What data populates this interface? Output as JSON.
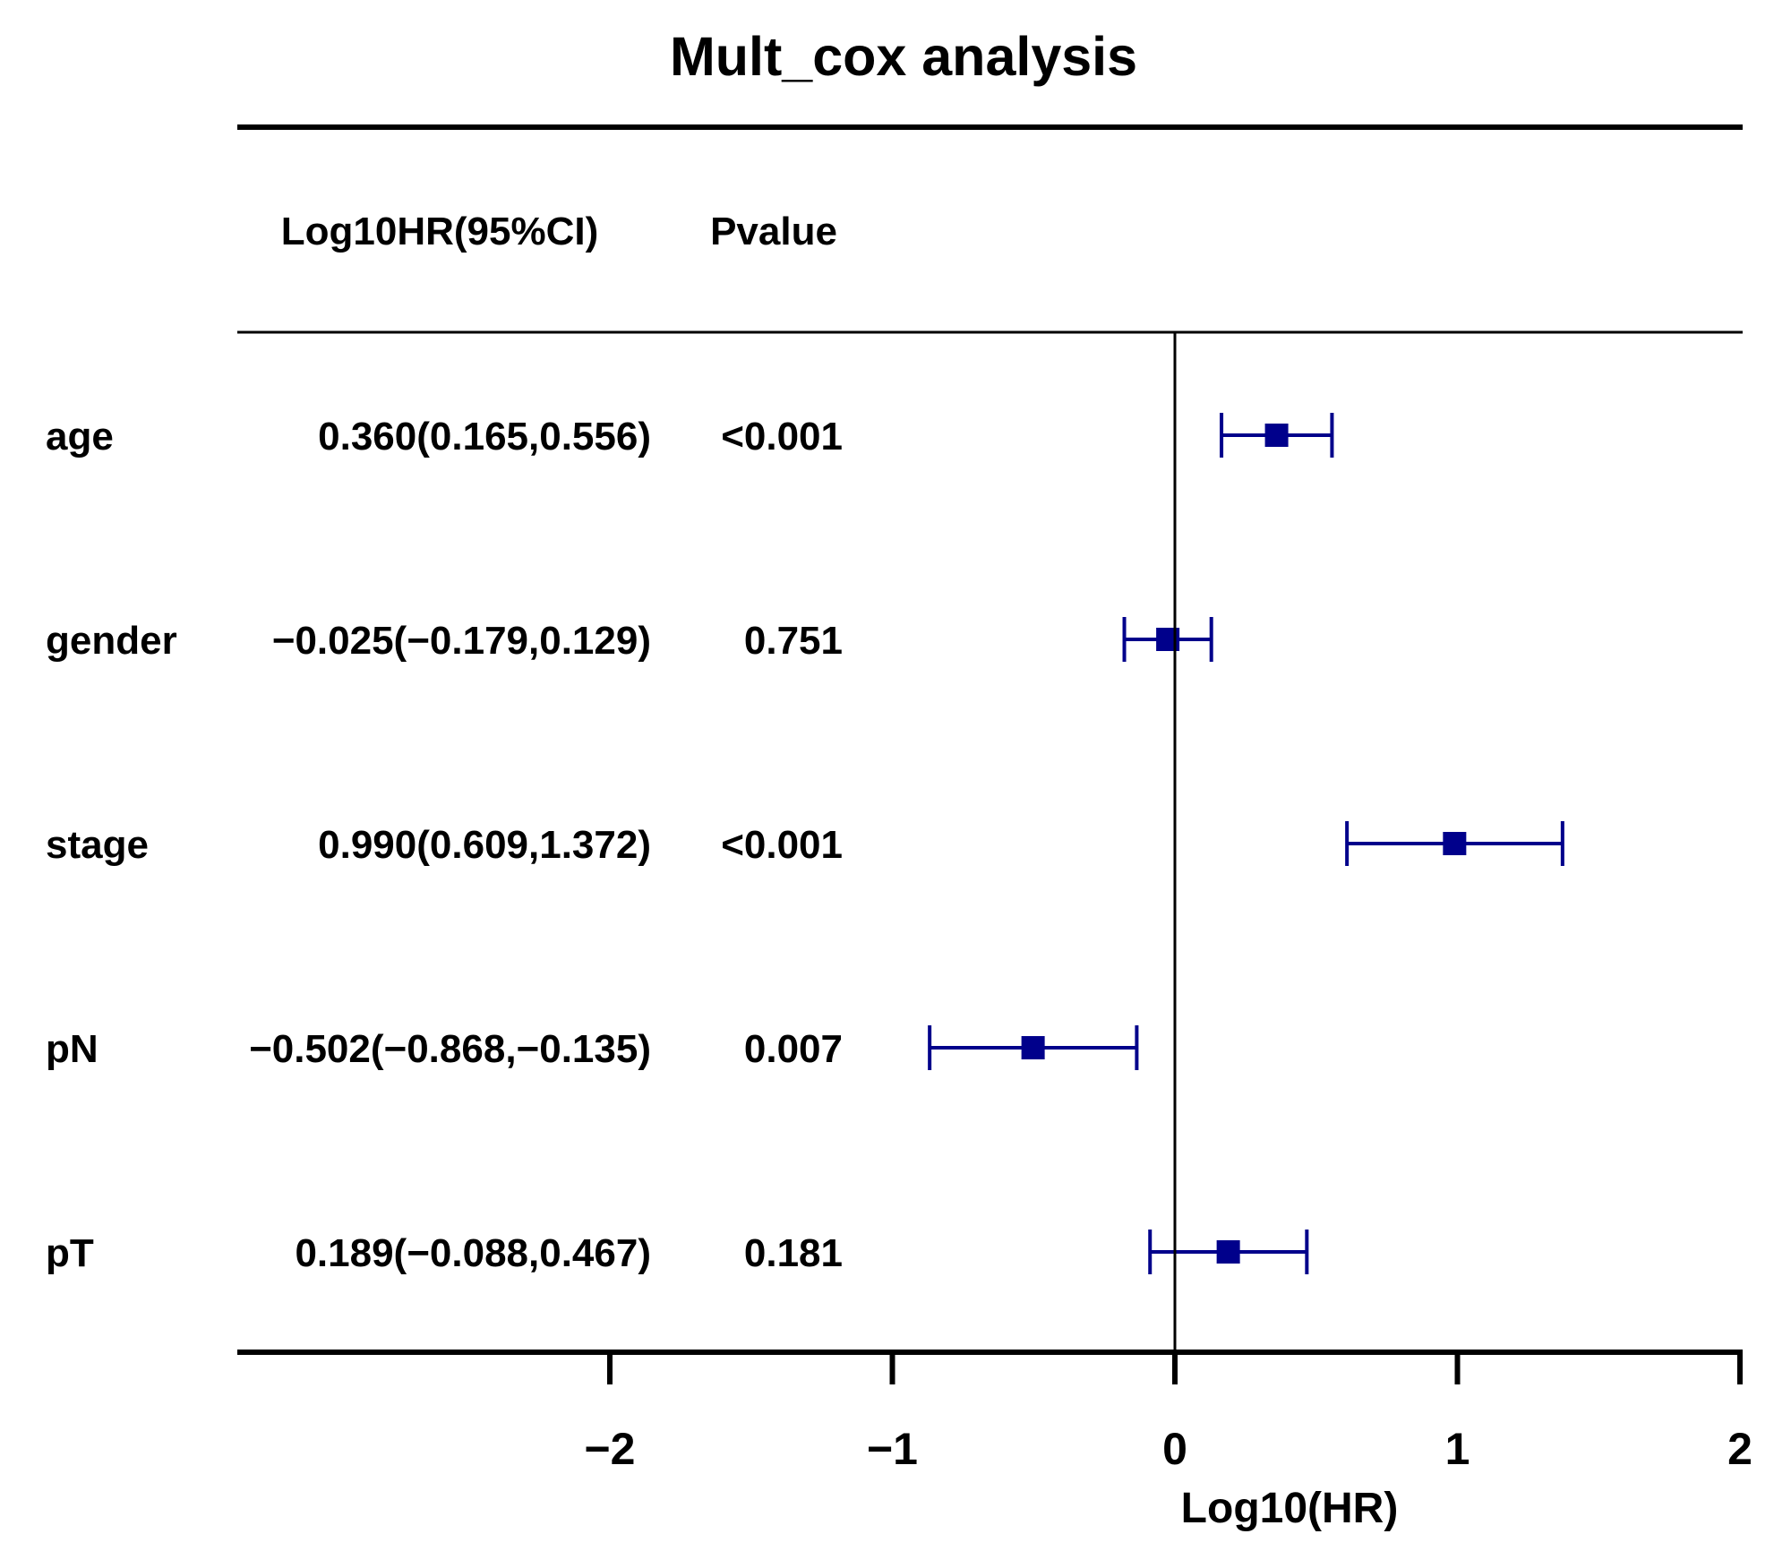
{
  "chart_data": {
    "type": "forest",
    "title": "Mult_cox analysis",
    "xlabel": "Log10(HR)",
    "xlim": [
      -2,
      2
    ],
    "xticks": [
      -2,
      -1,
      0,
      1,
      2
    ],
    "xtick_labels": [
      "−2",
      "−1",
      "0",
      "1",
      "2"
    ],
    "columns": [
      "Log10HR(95%CI)",
      "Pvalue"
    ],
    "reference_line": 0,
    "color": "#00008B",
    "rows": [
      {
        "label": "age",
        "est": 0.36,
        "lo": 0.165,
        "hi": 0.556,
        "ci_text": "0.360(0.165,0.556)",
        "p": "<0.001"
      },
      {
        "label": "gender",
        "est": -0.025,
        "lo": -0.179,
        "hi": 0.129,
        "ci_text": "−0.025(−0.179,0.129)",
        "p": "0.751"
      },
      {
        "label": "stage",
        "est": 0.99,
        "lo": 0.609,
        "hi": 1.372,
        "ci_text": "0.990(0.609,1.372)",
        "p": "<0.001"
      },
      {
        "label": "pN",
        "est": -0.502,
        "lo": -0.868,
        "hi": -0.135,
        "ci_text": "−0.502(−0.868,−0.135)",
        "p": "0.007"
      },
      {
        "label": "pT",
        "est": 0.189,
        "lo": -0.088,
        "hi": 0.467,
        "ci_text": "0.189(−0.088,0.467)",
        "p": "0.181"
      }
    ]
  }
}
